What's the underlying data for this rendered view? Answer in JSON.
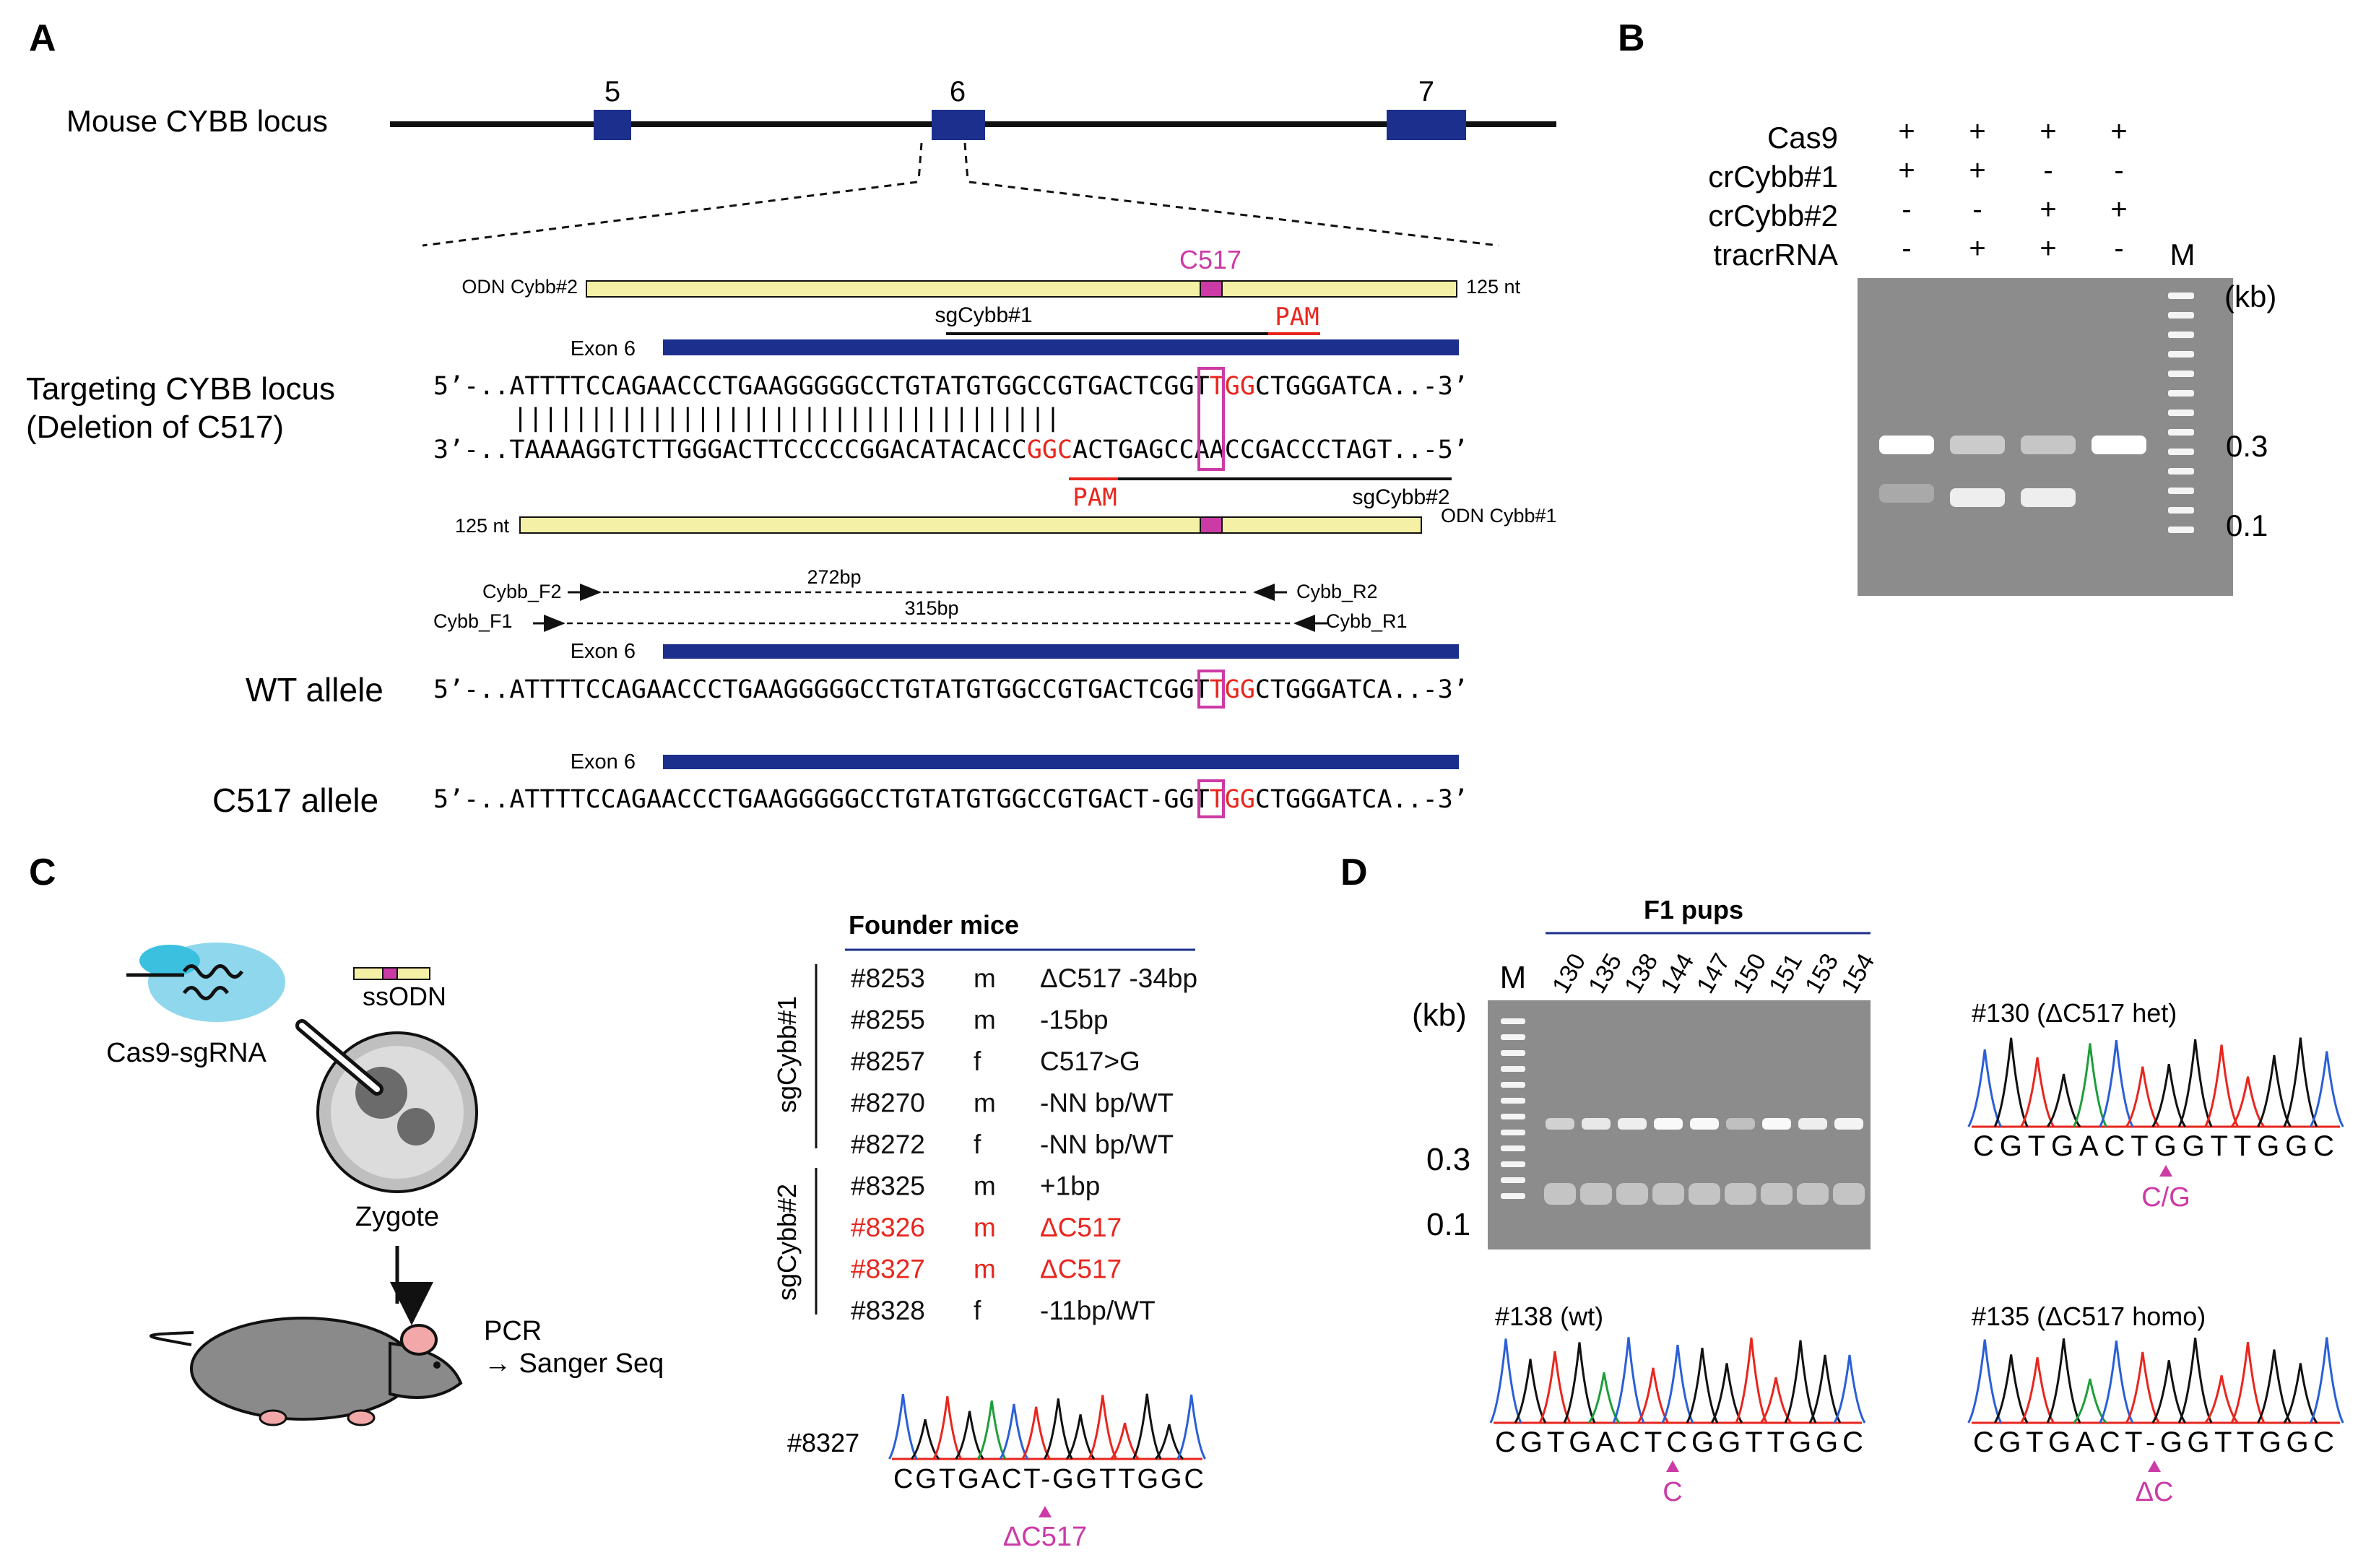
{
  "colors": {
    "navy": "#1c2f8c",
    "red": "#e8261e",
    "magenta": "#cc3aa6",
    "odn": "#f4f0a6",
    "gel": "#8c8c8c"
  },
  "panelA": {
    "label": "A",
    "locus_label": "Mouse CYBB locus",
    "exons": [
      "5",
      "6",
      "7"
    ],
    "c517": "C517",
    "odn2_label": "ODN Cybb#2",
    "odn2_len": "125 nt",
    "sg1": "sgCybb#1",
    "pam": "PAM",
    "exon6": "Exon 6",
    "targeting_title": "Targeting CYBB locus",
    "targeting_sub": "(Deletion of C517)",
    "top_strand": {
      "a": "5’-..ATTTTCCAGAACCCTGAAGGGGGCCTGTATGTGGCCGTGACT",
      "b": "C",
      "c": "GGT",
      "d": "TGG",
      "e": "CTGGGATCA..-3’"
    },
    "pairs": "||||||||||||||||||||||||||||||||||||",
    "bottom_strand": {
      "a": "3’-..TAAAAGGTCTTGGGACTTCCCCCGGACATACACC",
      "b": "GGC",
      "c": "ACTGA",
      "d": "G",
      "e": "CCAACCGACCCTAGT..-5’"
    },
    "pam2": "PAM",
    "sg2": "sgCybb#2",
    "odn1_len": "125 nt",
    "odn1_label": "ODN Cybb#1",
    "primers": {
      "f2": "Cybb_F2",
      "r2": "Cybb_R2",
      "p272": "272bp",
      "f1": "Cybb_F1",
      "r1": "Cybb_R1",
      "p315": "315bp"
    },
    "wt_label": "WT allele",
    "wt_seq": {
      "a": "5’-..ATTTTCCAGAACCCTGAAGGGGGCCTGTATGTGGCCGTGACT",
      "b": "C",
      "c": "GGT",
      "d": "TGG",
      "e": "CTGGGATCA..-3’"
    },
    "c517_label": "C517 allele",
    "c517_seq": {
      "a": "5’-..ATTTTCCAGAACCCTGAAGGGGGCCTGTATGTGGCCGTGACT",
      "b": "-",
      "c": "GGT",
      "d": "TGG",
      "e": "CTGGGATCA..-3’"
    }
  },
  "panelB": {
    "label": "B",
    "rows": [
      {
        "name": "Cas9",
        "vals": [
          "+",
          "+",
          "+",
          "+"
        ]
      },
      {
        "name": "crCybb#1",
        "vals": [
          "+",
          "+",
          "-",
          "-"
        ]
      },
      {
        "name": "crCybb#2",
        "vals": [
          "-",
          "-",
          "+",
          "+"
        ]
      },
      {
        "name": "tracrRNA",
        "vals": [
          "-",
          "+",
          "+",
          "-"
        ]
      }
    ],
    "marker": "M",
    "kb": "(kb)",
    "sizes": [
      "0.3",
      "0.1"
    ]
  },
  "panelC": {
    "label": "C",
    "cas9": "Cas9-sgRNA",
    "ssodn": "ssODN",
    "zygote": "Zygote",
    "pcr": "PCR",
    "sanger": "→ Sanger Seq",
    "founder_title": "Founder mice",
    "group1": "sgCybb#1",
    "group2": "sgCybb#2",
    "founders": [
      {
        "id": "#8253",
        "sex": "m",
        "geno": "ΔC517 -34bp",
        "hl": false
      },
      {
        "id": "#8255",
        "sex": "m",
        "geno": "-15bp",
        "hl": false
      },
      {
        "id": "#8257",
        "sex": "f",
        "geno": "C517>G",
        "hl": false
      },
      {
        "id": "#8270",
        "sex": "m",
        "geno": "-NN bp/WT",
        "hl": false
      },
      {
        "id": "#8272",
        "sex": "f",
        "geno": "-NN bp/WT",
        "hl": false
      },
      {
        "id": "#8325",
        "sex": "m",
        "geno": "+1bp",
        "hl": false
      },
      {
        "id": "#8326",
        "sex": "m",
        "geno": "ΔC517",
        "hl": true
      },
      {
        "id": "#8327",
        "sex": "m",
        "geno": "ΔC517",
        "hl": true
      },
      {
        "id": "#8328",
        "sex": "f",
        "geno": "-11bp/WT",
        "hl": false
      }
    ],
    "trace_id": "#8327",
    "trace_seq": "CGTGACT-GGTTGGC",
    "trace_mark": "ΔC517"
  },
  "panelD": {
    "label": "D",
    "f1": "F1 pups",
    "marker": "M",
    "lanes": [
      "130",
      "135",
      "138",
      "144",
      "147",
      "150",
      "151",
      "153",
      "154"
    ],
    "kb": "(kb)",
    "sizes": [
      "0.3",
      "0.1"
    ],
    "t130": {
      "title": "#130 (ΔC517 het)",
      "seq": "CGTGACTGGTTGGC",
      "mark": "C/G"
    },
    "t138": {
      "title": "#138 (wt)",
      "seq": "CGTGACTCGGTTGGC",
      "mark": "C"
    },
    "t135": {
      "title": "#135 (ΔC517 homo)",
      "seq": "CGTGACT-GGTTGGC",
      "mark": "ΔC"
    }
  }
}
